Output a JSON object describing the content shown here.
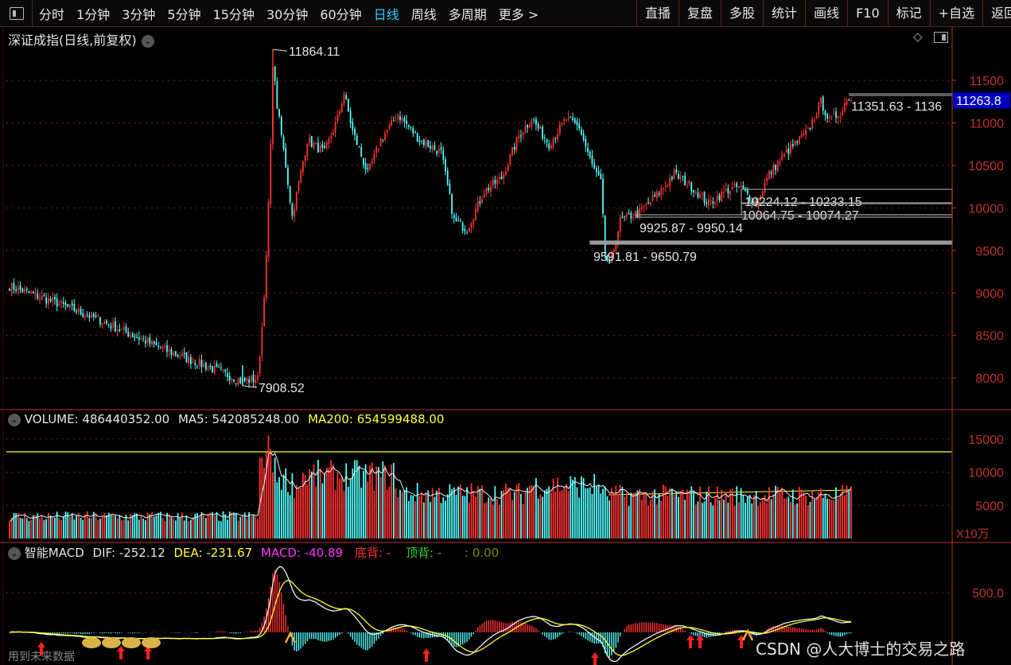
{
  "toolbar": {
    "periods": [
      "分时",
      "1分钟",
      "3分钟",
      "5分钟",
      "15分钟",
      "30分钟",
      "60分钟",
      "日线",
      "周线",
      "多周期",
      "更多 >"
    ],
    "active_period": "日线",
    "right_buttons": [
      "直播",
      "复盘",
      "多股",
      "统计",
      "画线",
      "F10",
      "标记",
      "+自选",
      "返回"
    ]
  },
  "main_chart": {
    "title": "深证成指(日线,前复权)",
    "price_ticks": [
      "11500",
      "11000",
      "10500",
      "10000",
      "9500",
      "9000",
      "8500",
      "8000"
    ],
    "current_price": "11263.8",
    "high_label": "11864.11",
    "low_label": "7908.52",
    "gap_labels": [
      "11351.63 - 1136",
      "10224.12 - 10233.15",
      "10064.75 - 10074.27",
      "9925.87 - 9950.14",
      "9591.81 - 9650.79"
    ]
  },
  "volume": {
    "label": "VOLUME: 486440352.00",
    "ma5": "MA5: 542085248.00",
    "ma200": "MA200: 654599488.00",
    "ticks": [
      "15000",
      "10000",
      "5000"
    ],
    "unit": "X10万"
  },
  "macd": {
    "name": "智能MACD",
    "dif": "DIF: -252.12",
    "dea": "DEA: -231.67",
    "macd": "MACD: -40.89",
    "bottom": "底背: -",
    "top": "顶背: -",
    "extra": ": 0.00",
    "tick": "500.0",
    "no_data": "用到未来数据"
  },
  "watermark": "CSDN @人大博士的交易之路",
  "colors": {
    "up": "#ff3232",
    "down": "#54fcfc",
    "grid": "#7a1a1a",
    "axis": "#c03030",
    "price_box": "#0000c0"
  }
}
